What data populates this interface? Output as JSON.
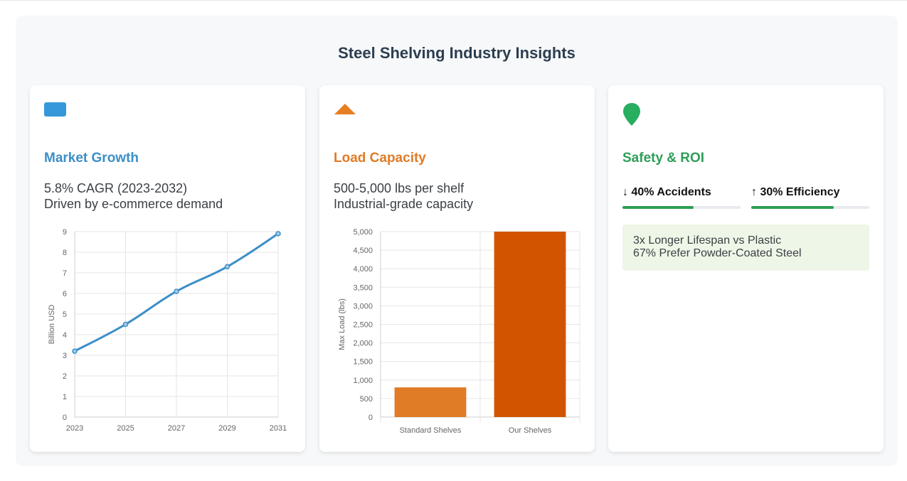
{
  "page": {
    "title": "Steel Shelving Industry Insights"
  },
  "colors": {
    "blue": "#3c8fc7",
    "orange": "#e07b26",
    "dark_orange": "#d35400",
    "green": "#2e9e58"
  },
  "cards": [
    {
      "icon": "card-icon",
      "title": "Market Growth",
      "lines": [
        "5.8% CAGR (2023-2032)",
        "Driven by e-commerce demand"
      ]
    },
    {
      "icon": "triangle-icon",
      "title": "Load Capacity",
      "lines": [
        "500-5,000 lbs per shelf",
        "Industrial-grade capacity"
      ]
    },
    {
      "icon": "location-pin-icon",
      "title": "Safety & ROI",
      "metrics": [
        {
          "label": "↓ 40% Accidents",
          "fraction": 0.6
        },
        {
          "label": "↑ 30% Efficiency",
          "fraction": 0.7
        }
      ],
      "notes": [
        "3x Longer Lifespan vs Plastic",
        "67% Prefer Powder-Coated Steel"
      ]
    }
  ],
  "chart_data": [
    {
      "type": "line",
      "x": [
        "2023",
        "2025",
        "2027",
        "2029",
        "2031"
      ],
      "values": [
        3.2,
        4.5,
        6.1,
        7.3,
        8.9
      ],
      "ylabel": "Billion USD",
      "ylim": [
        0,
        9
      ],
      "yticks": [
        "0",
        "1",
        "2",
        "3",
        "4",
        "5",
        "6",
        "7",
        "8",
        "9"
      ],
      "grid": true
    },
    {
      "type": "bar",
      "categories": [
        "Standard Shelves",
        "Our Shelves"
      ],
      "values": [
        800,
        5000
      ],
      "ylabel": "Max Load (lbs)",
      "ylim": [
        0,
        5000
      ],
      "yticks": [
        "0",
        "500",
        "1,000",
        "1,500",
        "2,000",
        "2,500",
        "3,000",
        "3,500",
        "4,000",
        "4,500",
        "5,000"
      ],
      "grid": true
    }
  ]
}
